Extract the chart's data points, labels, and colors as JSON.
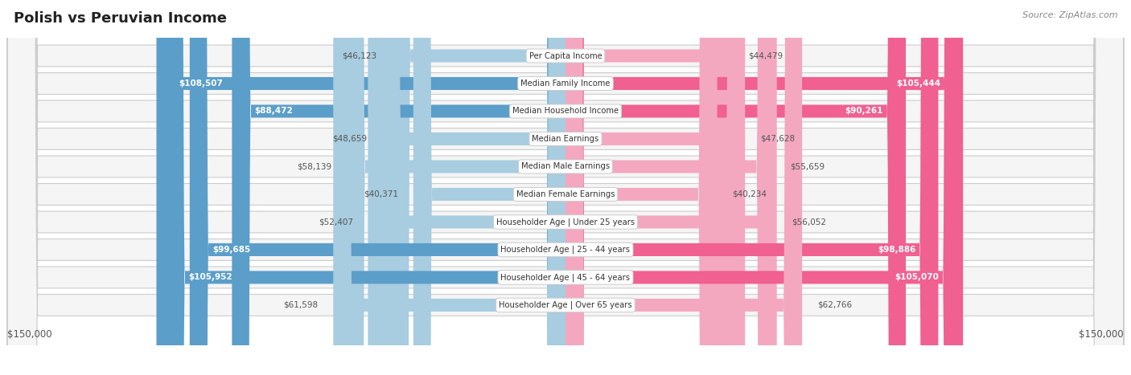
{
  "title": "Polish vs Peruvian Income",
  "source": "Source: ZipAtlas.com",
  "max_value": 150000,
  "polish_color_dark": "#5B9EC9",
  "polish_color_light": "#A8CCE0",
  "peruvian_color_dark": "#F06090",
  "peruvian_color_light": "#F4A8C0",
  "row_bg_color": "#F2F2F2",
  "row_border_color": "#DDDDDD",
  "categories": [
    "Per Capita Income",
    "Median Family Income",
    "Median Household Income",
    "Median Earnings",
    "Median Male Earnings",
    "Median Female Earnings",
    "Householder Age | Under 25 years",
    "Householder Age | 25 - 44 years",
    "Householder Age | 45 - 64 years",
    "Householder Age | Over 65 years"
  ],
  "polish_values": [
    46123,
    108507,
    88472,
    48659,
    58139,
    40371,
    52407,
    99685,
    105952,
    61598
  ],
  "peruvian_values": [
    44479,
    105444,
    90261,
    47628,
    55659,
    40234,
    56052,
    98886,
    105070,
    62766
  ],
  "polish_labels": [
    "$46,123",
    "$108,507",
    "$88,472",
    "$48,659",
    "$58,139",
    "$40,371",
    "$52,407",
    "$99,685",
    "$105,952",
    "$61,598"
  ],
  "peruvian_labels": [
    "$44,479",
    "$105,444",
    "$90,261",
    "$47,628",
    "$55,659",
    "$40,234",
    "$56,052",
    "$98,886",
    "$105,070",
    "$62,766"
  ],
  "large_threshold": 65000
}
